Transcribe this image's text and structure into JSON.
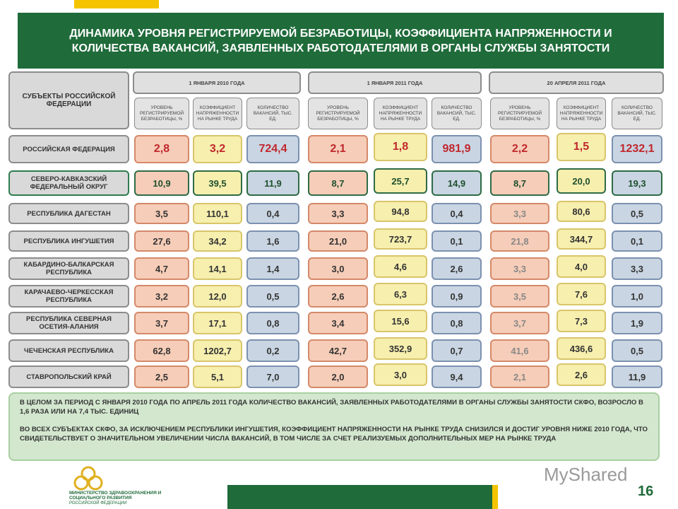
{
  "header": {
    "title": "ДИНАМИКА УРОВНЯ РЕГИСТРИРУЕМОЙ БЕЗРАБОТИЦЫ, КОЭФФИЦИЕНТА НАПРЯЖЕННОСТИ И КОЛИЧЕСТВА ВАКАНСИЙ, ЗАЯВЛЕННЫХ РАБОТОДАТЕЛЯМИ В ОРГАНЫ СЛУЖБЫ ЗАНЯТОСТИ"
  },
  "table": {
    "corner": "СУБЪЕКТЫ РОССИЙСКОЙ ФЕДЕРАЦИИ",
    "periods": [
      {
        "title": "1 ЯНВАРЯ 2010 ГОДА",
        "columns": [
          "УРОВЕНЬ РЕГИСТРИРУЕМОЙ БЕЗРАБОТИЦЫ, %",
          "КОЭФФИЦИЕНТ НАПРЯЖЕННОСТИ НА РЫНКЕ ТРУДА",
          "КОЛИЧЕСТВО ВАКАНСИЙ, ТЫС. ЕД."
        ]
      },
      {
        "title": "1 ЯНВАРЯ 2011 ГОДА",
        "columns": [
          "УРОВЕНЬ РЕГИСТРИРУЕМОЙ БЕЗРАБОТИЦЫ, %",
          "КОЭФФИЦИЕНТ НАПРЯЖЕННОСТИ НА РЫНКЕ ТРУДА",
          "КОЛИЧЕСТВО ВАКАНСИЙ, ТЫС. ЕД."
        ]
      },
      {
        "title": "20 АПРЕЛЯ 2011 ГОДА",
        "columns": [
          "УРОВЕНЬ РЕГИСТРИРУЕМОЙ БЕЗРАБОТИЦЫ, %",
          "КОЭФФИЦИЕНТ НАПРЯЖЕННОСТИ НА РЫНКЕ ТРУДА",
          "КОЛИЧЕСТВО ВАКАНСИЙ, ТЫС. ЕД."
        ]
      }
    ],
    "rows": [
      {
        "name": "РОССИЙСКАЯ ФЕДЕРАЦИЯ",
        "values": [
          "2,8",
          "3,2",
          "724,4",
          "2,1",
          "1,8",
          "981,9",
          "2,2",
          "1,5",
          "1232,1"
        ]
      },
      {
        "name": "СЕВЕРО-КАВКАЗСКИЙ ФЕДЕРАЛЬНЫЙ ОКРУГ",
        "values": [
          "10,9",
          "39,5",
          "11,9",
          "8,7",
          "25,7",
          "14,9",
          "8,7",
          "20,0",
          "19,3"
        ]
      },
      {
        "name": "РЕСПУБЛИКА ДАГЕСТАН",
        "values": [
          "3,5",
          "110,1",
          "0,4",
          "3,3",
          "94,8",
          "0,4",
          "3,3",
          "80,6",
          "0,5"
        ]
      },
      {
        "name": "РЕСПУБЛИКА ИНГУШЕТИЯ",
        "values": [
          "27,6",
          "34,2",
          "1,6",
          "21,0",
          "723,7",
          "0,1",
          "21,8",
          "344,7",
          "0,1"
        ]
      },
      {
        "name": "КАБАРДИНО-БАЛКАРСКАЯ РЕСПУБЛИКА",
        "values": [
          "4,7",
          "14,1",
          "1,4",
          "3,0",
          "4,6",
          "2,6",
          "3,3",
          "4,0",
          "3,3"
        ]
      },
      {
        "name": "КАРАЧАЕВО-ЧЕРКЕССКАЯ РЕСПУБЛИКА",
        "values": [
          "3,2",
          "12,0",
          "0,5",
          "2,6",
          "6,3",
          "0,9",
          "3,5",
          "7,6",
          "1,0"
        ]
      },
      {
        "name": "РЕСПУБЛИКА СЕВЕРНАЯ ОСЕТИЯ-АЛАНИЯ",
        "values": [
          "3,7",
          "17,1",
          "0,8",
          "3,4",
          "15,6",
          "0,8",
          "3,7",
          "7,3",
          "1,9"
        ]
      },
      {
        "name": "ЧЕЧЕНСКАЯ РЕСПУБЛИКА",
        "values": [
          "62,8",
          "1202,7",
          "0,2",
          "42,7",
          "352,9",
          "0,7",
          "41,6",
          "436,6",
          "0,5"
        ]
      },
      {
        "name": "СТАВРОПОЛЬСКИЙ КРАЙ",
        "values": [
          "2,5",
          "5,1",
          "7,0",
          "2,0",
          "3,0",
          "9,4",
          "2,1",
          "2,6",
          "11,9"
        ]
      }
    ]
  },
  "notes": [
    "В ЦЕЛОМ ЗА ПЕРИОД С ЯНВАРЯ 2010 ГОДА ПО АПРЕЛЬ 2011 ГОДА КОЛИЧЕСТВО ВАКАНСИЙ, ЗАЯВЛЕННЫХ РАБОТОДАТЕЛЯМИ В ОРГАНЫ СЛУЖБЫ ЗАНЯТОСТИ СКФО, ВОЗРОСЛО В 1,6 РАЗА ИЛИ НА 7,4 ТЫС. ЕДИНИЦ",
    "ВО ВСЕХ СУБЪЕКТАХ СКФО, ЗА ИСКЛЮЧЕНИЕМ РЕСПУБЛИКИ ИНГУШЕТИЯ, КОЭФФИЦИЕНТ НАПРЯЖЕННОСТИ НА РЫНКЕ ТРУДА СНИЗИЛСЯ И ДОСТИГ УРОВНЯ НИЖЕ 2010 ГОДА, ЧТО СВИДЕТЕЛЬСТВУЕТ О ЗНАЧИТЕЛЬНОМ УВЕЛИЧЕНИИ ЧИСЛА ВАКАНСИЙ, В ТОМ ЧИСЛЕ ЗА СЧЕТ РЕАЛИЗУЕМЫХ ДОПОЛНИТЕЛЬНЫХ МЕР НА РЫНКЕ ТРУДА"
  ],
  "footer": {
    "ministry": "МИНИСТЕРСТВО ЗДРАВООХРАНЕНИЯ И СОЦИАЛЬНОГО РАЗВИТИЯ",
    "country": "РОССИЙСКОЙ ФЕДЕРАЦИИ",
    "watermark": "MyShared",
    "page": "16"
  }
}
